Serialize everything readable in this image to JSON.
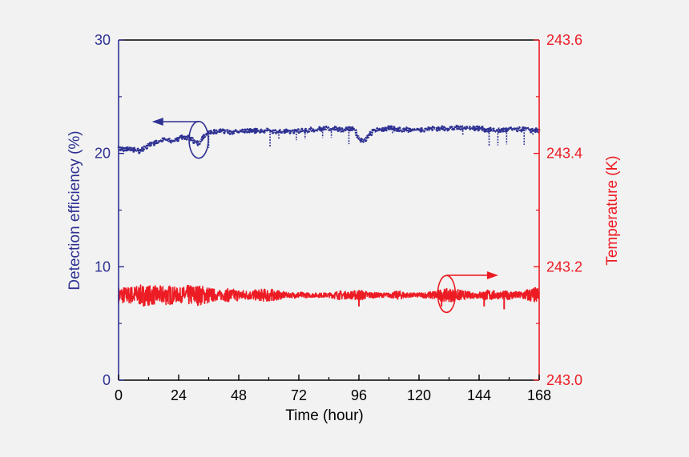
{
  "chart_data": {
    "type": "line",
    "title": "",
    "xlabel": "Time (hour)",
    "ylabel_left": "Detection efficiency (%)",
    "ylabel_right": "Temperature (K)",
    "xlim": [
      0,
      168
    ],
    "ylim_left": [
      0,
      30
    ],
    "ylim_right": [
      243.0,
      243.6
    ],
    "x_ticks": [
      "0",
      "24",
      "48",
      "72",
      "96",
      "120",
      "144",
      "168"
    ],
    "y_ticks_left": [
      "0",
      "10",
      "20",
      "30"
    ],
    "y_ticks_right": [
      "243.0",
      "243.2",
      "243.4",
      "243.6"
    ],
    "grid": false,
    "legend": "none",
    "colors": {
      "efficiency": "#2e3192",
      "temperature": "#ed1c24",
      "axis": "#000000"
    },
    "series": [
      {
        "axis": "left",
        "x": [
          0,
          2,
          4,
          6,
          8,
          10,
          12,
          14,
          16,
          18,
          20,
          22,
          24,
          26,
          28,
          30,
          32,
          34,
          36,
          38,
          40,
          42,
          44,
          48,
          54,
          60,
          66,
          72,
          78,
          84,
          90,
          94,
          96,
          98,
          100,
          102,
          104,
          108,
          114,
          120,
          126,
          132,
          138,
          144,
          150,
          156,
          162,
          168
        ],
        "values": [
          20.5,
          20.4,
          20.5,
          20.3,
          20.2,
          20.4,
          20.7,
          20.9,
          21.0,
          21.3,
          21.2,
          21.0,
          21.3,
          21.5,
          21.4,
          21.1,
          20.9,
          21.5,
          21.8,
          21.9,
          21.9,
          22.0,
          21.9,
          21.9,
          22.0,
          22.0,
          21.9,
          22.0,
          22.1,
          22.2,
          22.1,
          22.2,
          21.3,
          21.0,
          21.6,
          22.0,
          22.1,
          22.2,
          22.1,
          22.1,
          22.2,
          22.2,
          22.3,
          22.2,
          22.0,
          22.1,
          22.1,
          22.0
        ]
      },
      {
        "axis": "right",
        "x": [
          0,
          4,
          8,
          12,
          16,
          20,
          24,
          28,
          32,
          36,
          40,
          44,
          48,
          52,
          56,
          60,
          64,
          68,
          72,
          76,
          80,
          84,
          88,
          92,
          96,
          100,
          104,
          108,
          112,
          116,
          120,
          124,
          128,
          132,
          136,
          140,
          144,
          148,
          152,
          156,
          160,
          164,
          168
        ],
        "values": [
          243.15,
          243.15,
          243.15,
          243.15,
          243.15,
          243.15,
          243.15,
          243.15,
          243.15,
          243.15,
          243.15,
          243.15,
          243.15,
          243.15,
          243.15,
          243.15,
          243.15,
          243.15,
          243.15,
          243.15,
          243.15,
          243.15,
          243.15,
          243.15,
          243.15,
          243.15,
          243.15,
          243.15,
          243.15,
          243.15,
          243.15,
          243.15,
          243.15,
          243.15,
          243.15,
          243.15,
          243.15,
          243.15,
          243.15,
          243.15,
          243.15,
          243.15,
          243.15
        ],
        "noise_amplitude": [
          0.015,
          0.015,
          0.018,
          0.018,
          0.016,
          0.018,
          0.012,
          0.018,
          0.018,
          0.015,
          0.008,
          0.012,
          0.01,
          0.008,
          0.01,
          0.012,
          0.008,
          0.004,
          0.006,
          0.004,
          0.004,
          0.004,
          0.008,
          0.006,
          0.01,
          0.006,
          0.004,
          0.004,
          0.008,
          0.004,
          0.004,
          0.006,
          0.01,
          0.012,
          0.01,
          0.006,
          0.006,
          0.01,
          0.006,
          0.008,
          0.006,
          0.012,
          0.015
        ]
      }
    ],
    "annotations": {
      "efficiency_marker_x": 32,
      "temperature_marker_x": 131
    }
  }
}
